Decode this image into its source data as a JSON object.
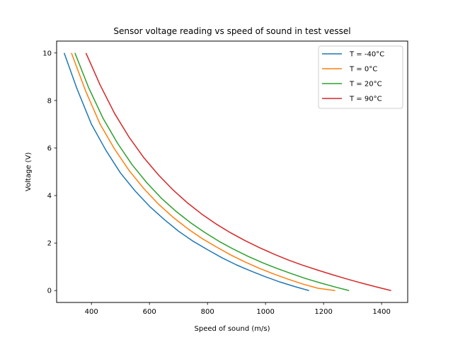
{
  "chart_data": {
    "type": "line",
    "title": "Sensor voltage reading vs speed of sound in test vessel",
    "xlabel": "Speed of sound (m/s)",
    "ylabel": "Voltage (V)",
    "xlim": [
      280,
      1490
    ],
    "ylim": [
      -0.5,
      10.5
    ],
    "xticks": [
      400,
      600,
      800,
      1000,
      1200,
      1400
    ],
    "yticks": [
      0,
      2,
      4,
      6,
      8,
      10
    ],
    "grid": false,
    "legend_position": "upper right",
    "series": [
      {
        "name": "T = -40°C",
        "color": "#1f77b4",
        "x": [
          306,
          350,
          400,
          450,
          500,
          550,
          600,
          650,
          700,
          750,
          800,
          850,
          900,
          950,
          1000,
          1050,
          1100,
          1150
        ],
        "y": [
          10.0,
          8.5,
          7.0,
          5.9,
          4.95,
          4.2,
          3.55,
          3.0,
          2.5,
          2.08,
          1.72,
          1.38,
          1.08,
          0.82,
          0.58,
          0.36,
          0.17,
          0.0
        ]
      },
      {
        "name": "T = 0°C",
        "color": "#ff7f0e",
        "x": [
          331,
          380,
          430,
          480,
          530,
          580,
          630,
          680,
          730,
          780,
          830,
          880,
          930,
          980,
          1030,
          1080,
          1130,
          1180,
          1240
        ],
        "y": [
          10.0,
          8.4,
          7.0,
          5.95,
          5.05,
          4.3,
          3.65,
          3.1,
          2.62,
          2.2,
          1.84,
          1.5,
          1.2,
          0.93,
          0.69,
          0.47,
          0.27,
          0.1,
          0.0
        ]
      },
      {
        "name": "T = 20°C",
        "color": "#2ca02c",
        "x": [
          343,
          390,
          440,
          490,
          540,
          590,
          640,
          690,
          740,
          790,
          840,
          890,
          940,
          990,
          1040,
          1090,
          1140,
          1190,
          1240,
          1288
        ],
        "y": [
          10.0,
          8.55,
          7.25,
          6.2,
          5.3,
          4.55,
          3.9,
          3.35,
          2.87,
          2.45,
          2.07,
          1.74,
          1.44,
          1.17,
          0.93,
          0.71,
          0.5,
          0.32,
          0.15,
          0.0
        ]
      },
      {
        "name": "T = 90°C",
        "color": "#d62728",
        "x": [
          381,
          430,
          480,
          530,
          580,
          630,
          680,
          730,
          780,
          830,
          880,
          930,
          980,
          1030,
          1080,
          1130,
          1180,
          1230,
          1280,
          1330,
          1380,
          1433
        ],
        "y": [
          10.0,
          8.65,
          7.45,
          6.45,
          5.6,
          4.88,
          4.25,
          3.7,
          3.22,
          2.8,
          2.43,
          2.1,
          1.8,
          1.53,
          1.28,
          1.06,
          0.86,
          0.67,
          0.49,
          0.32,
          0.16,
          0.0
        ]
      }
    ]
  }
}
